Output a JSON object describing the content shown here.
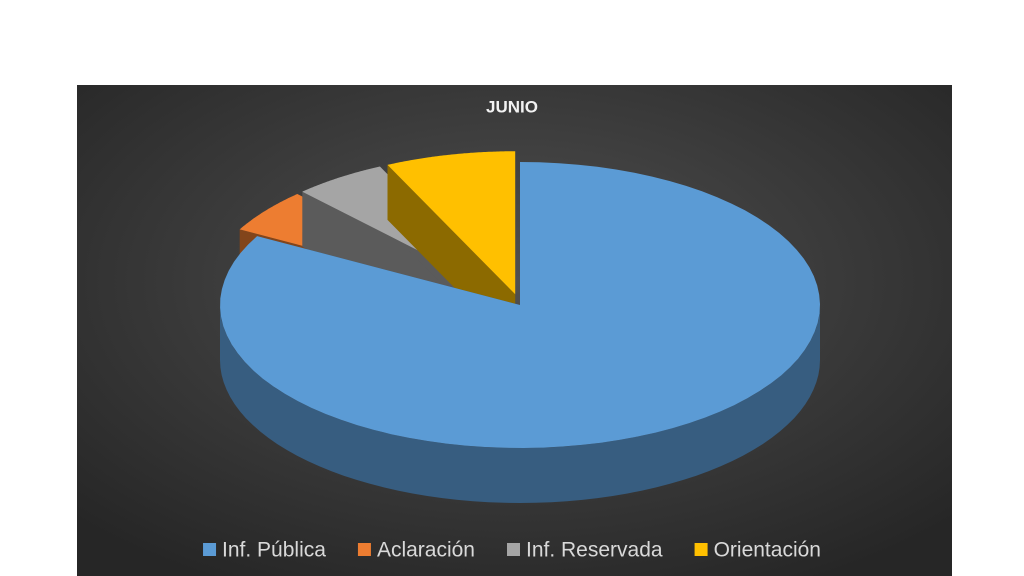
{
  "chart_data": {
    "type": "pie",
    "title": "JUNIO",
    "categories": [
      "Inf. Pública",
      "Aclaración",
      "Inf. Reservada",
      "Orientación"
    ],
    "values": [
      83,
      5,
      5,
      7
    ],
    "colors": [
      "#5b9bd5",
      "#ed7d31",
      "#a5a5a5",
      "#ffc000"
    ],
    "legend": "bottom"
  }
}
